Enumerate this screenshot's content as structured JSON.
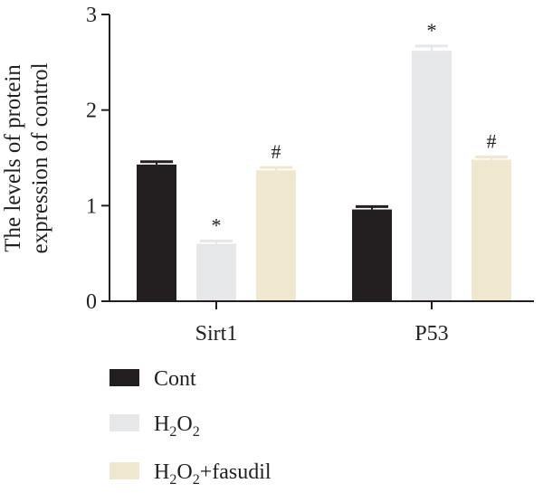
{
  "chart_data": {
    "type": "bar",
    "title": "",
    "xlabel": "",
    "ylabel_lines": [
      "The levels of protein",
      "expression of control"
    ],
    "ylim": [
      0,
      3
    ],
    "yticks": [
      "0",
      "1",
      "2",
      "3"
    ],
    "categories": [
      "Sirt1",
      "P53"
    ],
    "series": [
      {
        "name": "Cont",
        "legend_sub": "",
        "legend_after": "",
        "color": "#231f20",
        "values": [
          1.43,
          0.96
        ],
        "errors": [
          0.03,
          0.03
        ],
        "marks": [
          "",
          ""
        ]
      },
      {
        "name": "H2O2",
        "legend_sub": "2",
        "legend_after": "",
        "color": "#e6e7e8",
        "values": [
          0.6,
          2.62
        ],
        "errors": [
          0.03,
          0.05
        ],
        "marks": [
          "*",
          "*"
        ]
      },
      {
        "name": "H2O2+fasudil",
        "legend_sub": "2",
        "legend_after": "+fasudil",
        "color": "#efe8cf",
        "values": [
          1.37,
          1.48
        ],
        "errors": [
          0.03,
          0.03
        ],
        "marks": [
          "#",
          "#"
        ]
      }
    ],
    "legend_position": "bottom-left"
  }
}
